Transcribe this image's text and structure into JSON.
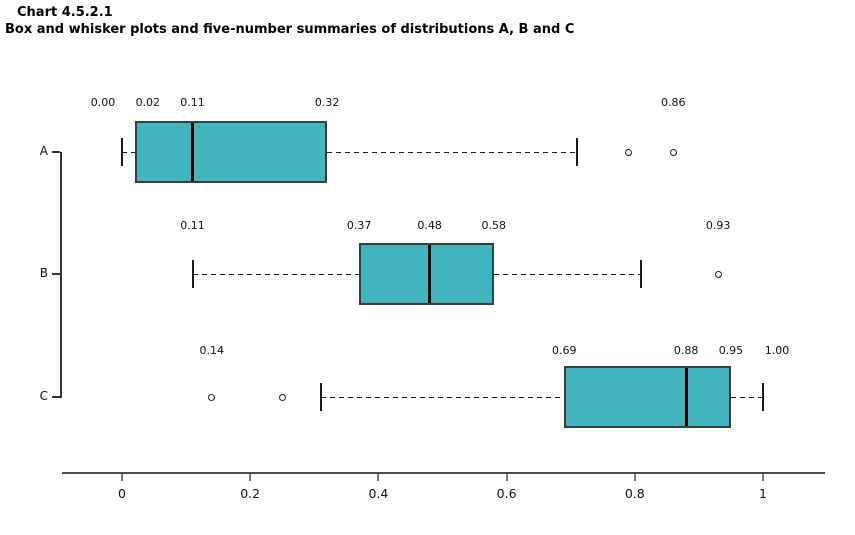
{
  "title": {
    "line1": "Chart 4.5.2.1",
    "line2": "Box and whisker plots and five-number summaries of distributions A, B and C"
  },
  "chart_data": {
    "type": "boxplot",
    "orientation": "horizontal",
    "title": "Chart 4.5.2.1",
    "subtitle": "Box and whisker plots and five-number summaries of distributions A, B and C",
    "categories": [
      "A",
      "B",
      "C"
    ],
    "x_axis": {
      "range": [
        0,
        1
      ],
      "tick_values": [
        0,
        0.2,
        0.4,
        0.6,
        0.8,
        1
      ],
      "tick_labels": [
        "0",
        "0.2",
        "0.4",
        "0.6",
        "0.8",
        "1"
      ]
    },
    "grid": "off",
    "colors": {
      "box_fill": "#41b4bd",
      "box_border": "#3c3c3c",
      "median": "#000000",
      "whisker": "#1a1a1a",
      "axis": "#4d4d4d",
      "text": "#111111"
    },
    "series": [
      {
        "name": "A",
        "five_number_summary": {
          "min": 0.0,
          "q1": 0.02,
          "median": 0.11,
          "q3": 0.32,
          "max": 0.86
        },
        "q1": 0.02,
        "median": 0.11,
        "q3": 0.32,
        "whisker_low": 0.0,
        "whisker_high": 0.71,
        "outliers": [
          0.79,
          0.86
        ],
        "value_labels": [
          {
            "text": "0.00",
            "v": 0.0,
            "dx": -19
          },
          {
            "text": "0.02",
            "v": 0.02,
            "dx": 13
          },
          {
            "text": "0.11",
            "v": 0.11,
            "dx": 0
          },
          {
            "text": "0.32",
            "v": 0.32,
            "dx": 0
          },
          {
            "text": "0.86",
            "v": 0.86,
            "dx": 0
          }
        ]
      },
      {
        "name": "B",
        "five_number_summary": {
          "min": 0.11,
          "q1": 0.37,
          "median": 0.48,
          "q3": 0.58,
          "max": 0.93
        },
        "q1": 0.37,
        "median": 0.48,
        "q3": 0.58,
        "whisker_low": 0.11,
        "whisker_high": 0.81,
        "outliers": [
          0.93
        ],
        "value_labels": [
          {
            "text": "0.11",
            "v": 0.11,
            "dx": 0
          },
          {
            "text": "0.37",
            "v": 0.37,
            "dx": 0
          },
          {
            "text": "0.48",
            "v": 0.48,
            "dx": 0
          },
          {
            "text": "0.58",
            "v": 0.58,
            "dx": 0
          },
          {
            "text": "0.93",
            "v": 0.93,
            "dx": 0
          }
        ]
      },
      {
        "name": "C",
        "five_number_summary": {
          "min": 0.14,
          "q1": 0.69,
          "median": 0.88,
          "q3": 0.95,
          "max": 1.0
        },
        "q1": 0.69,
        "median": 0.88,
        "q3": 0.95,
        "whisker_low": 0.31,
        "whisker_high": 1.0,
        "outliers": [
          0.14,
          0.25
        ],
        "value_labels": [
          {
            "text": "0.14",
            "v": 0.14,
            "dx": 0
          },
          {
            "text": "0.69",
            "v": 0.69,
            "dx": 0
          },
          {
            "text": "0.88",
            "v": 0.88,
            "dx": 0
          },
          {
            "text": "0.95",
            "v": 0.95,
            "dx": 0
          },
          {
            "text": "1.00",
            "v": 1.0,
            "dx": 14
          }
        ]
      }
    ]
  }
}
